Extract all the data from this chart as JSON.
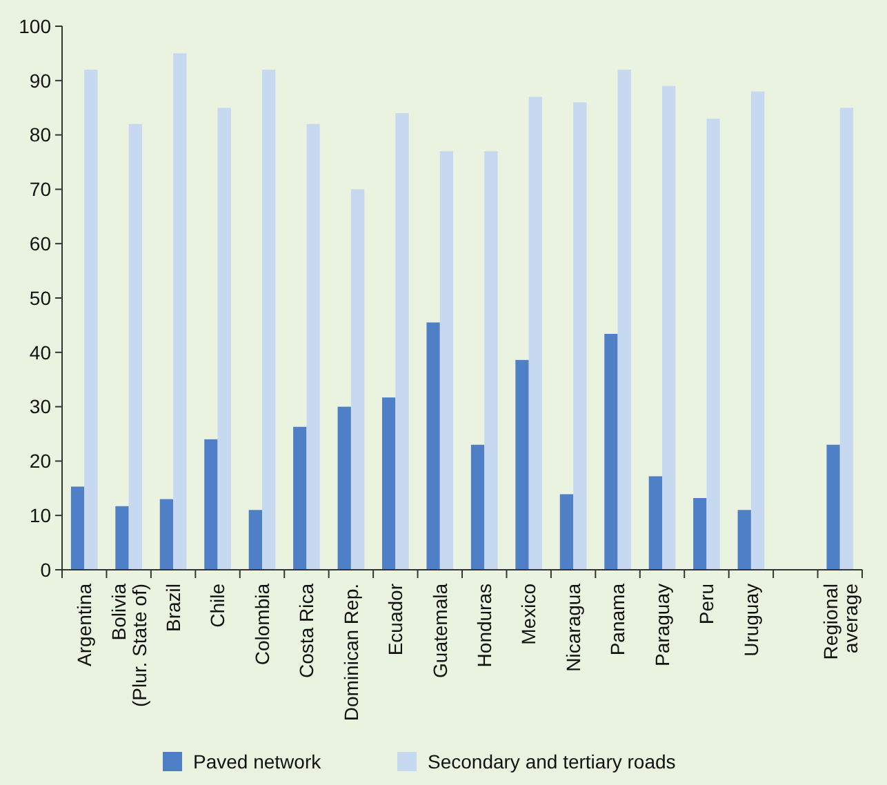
{
  "chart_data": {
    "type": "bar",
    "categories": [
      "Argentina",
      "Bolivia (Plur. State of)",
      "Brazil",
      "Chile",
      "Colombia",
      "Costa Rica",
      "Dominican Rep.",
      "Ecuador",
      "Guatemala",
      "Honduras",
      "Mexico",
      "Nicaragua",
      "Panama",
      "Paraguay",
      "Peru",
      "Uruguay",
      null,
      "Regional average"
    ],
    "series": [
      {
        "name": "Paved network",
        "color": "#4f7fc6",
        "values": [
          15.3,
          11.7,
          13,
          24,
          11,
          26.3,
          30,
          31.7,
          45.5,
          23,
          38.6,
          13.9,
          43.4,
          17.2,
          13.2,
          11,
          null,
          23
        ]
      },
      {
        "name": "Secondary and tertiary roads",
        "color": "#c6d9f1",
        "values": [
          92,
          82,
          95,
          85,
          92,
          82,
          70,
          84,
          77,
          77,
          87,
          86,
          92,
          89,
          83,
          88,
          null,
          85
        ]
      }
    ],
    "ylim": [
      0,
      100
    ],
    "yticks": [
      0,
      10,
      20,
      30,
      40,
      50,
      60,
      70,
      80,
      90,
      100
    ],
    "grid": false,
    "legend": "bottom"
  }
}
